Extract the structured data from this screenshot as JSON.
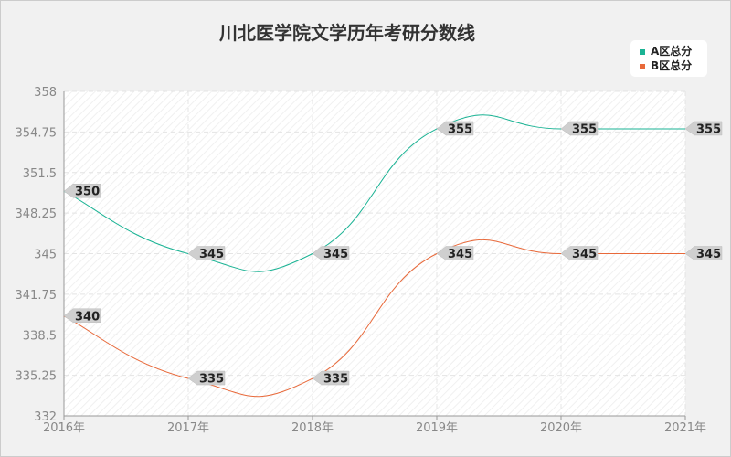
{
  "chart_data": {
    "type": "line",
    "title": "川北医学院文学历年考研分数线",
    "categories": [
      "2016年",
      "2017年",
      "2018年",
      "2019年",
      "2020年",
      "2021年"
    ],
    "series": [
      {
        "name": "A区总分",
        "color": "#1ab394",
        "values": [
          350,
          345,
          345,
          355,
          355,
          355
        ]
      },
      {
        "name": "B区总分",
        "color": "#e8693a",
        "values": [
          340,
          335,
          335,
          345,
          345,
          345
        ]
      }
    ],
    "ylim": [
      332,
      358
    ],
    "yticks": [
      "358",
      "354.75",
      "351.5",
      "348.25",
      "345",
      "341.75",
      "338.5",
      "335.25",
      "332"
    ],
    "grid": true,
    "legend": "top-right"
  }
}
